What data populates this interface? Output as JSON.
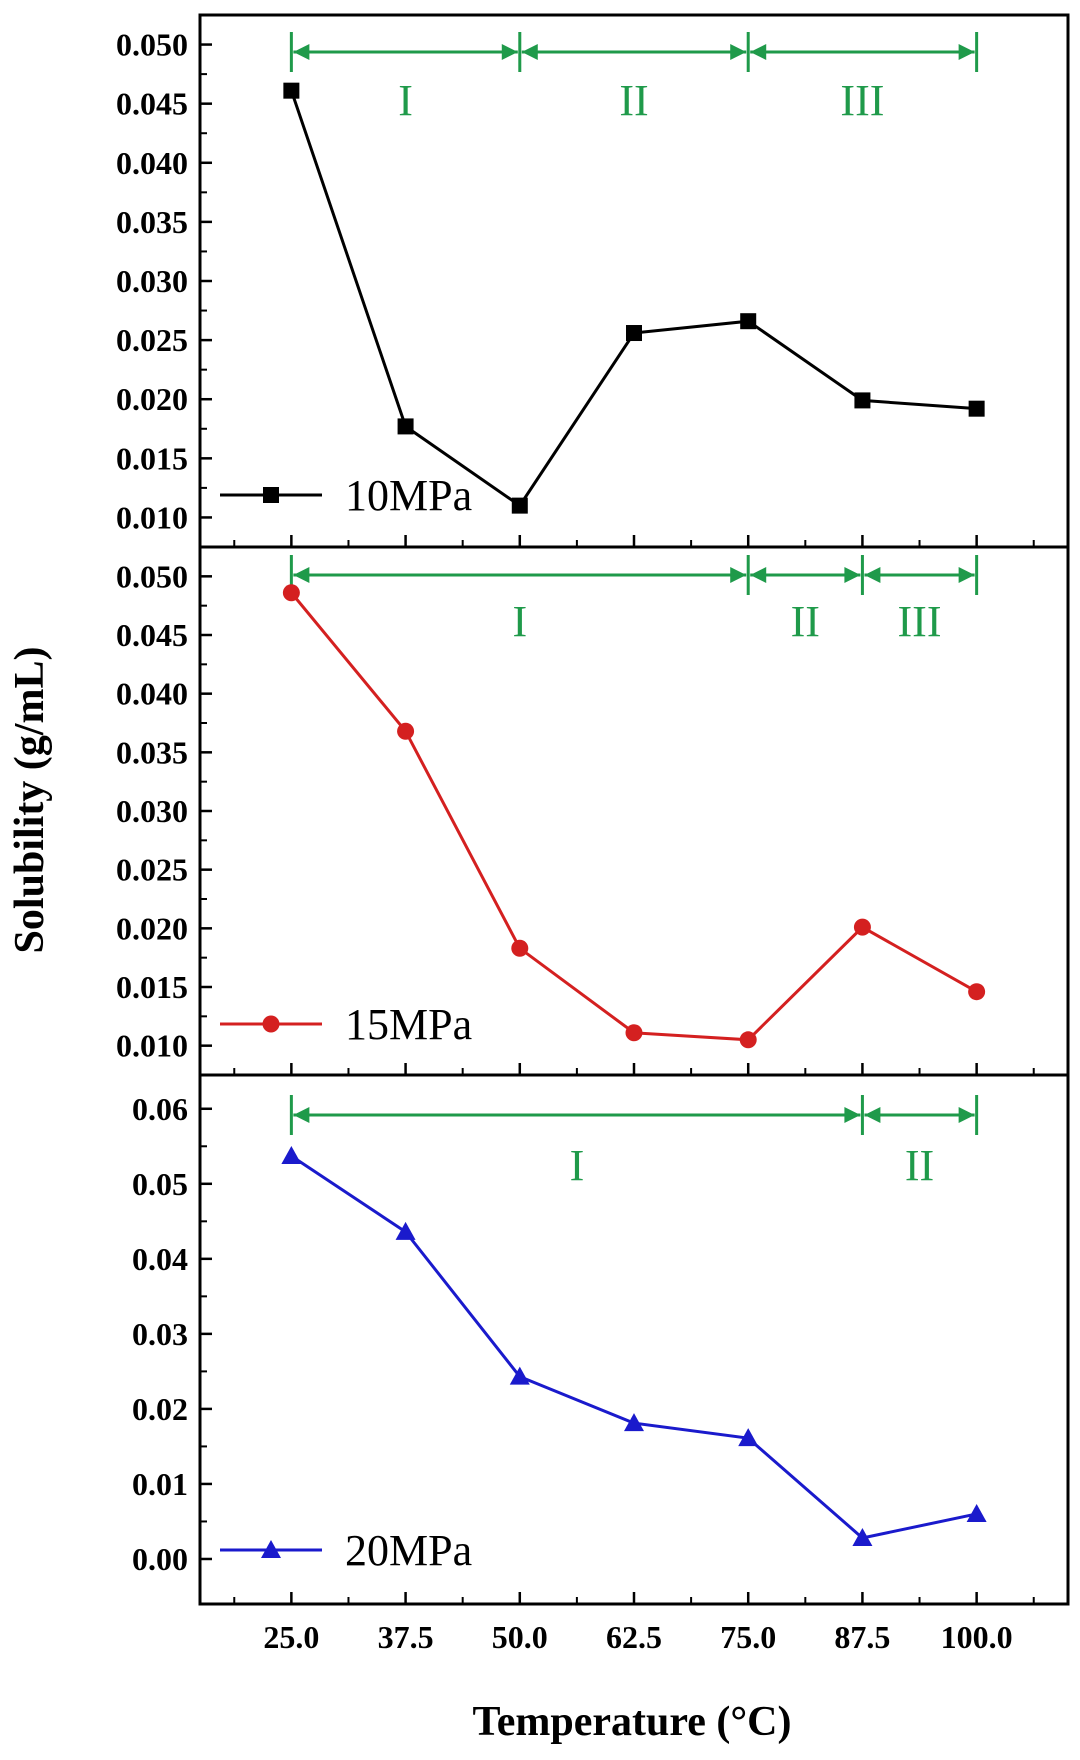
{
  "colors": {
    "region": "#1f9a4a",
    "axis": "#000000"
  },
  "chart_data": {
    "type": "line",
    "xlabel": "Temperature (°C)",
    "ylabel": "Solubility (g/mL)",
    "x_ticks": [
      25.0,
      37.5,
      50.0,
      62.5,
      75.0,
      87.5,
      100.0
    ],
    "x_tick_labels": [
      "25.0",
      "37.5",
      "50.0",
      "62.5",
      "75.0",
      "87.5",
      "100.0"
    ],
    "xlim": [
      15,
      110
    ],
    "panels": [
      {
        "series_name": "10MPa",
        "marker": "square",
        "color": "#000000",
        "x": [
          25.0,
          37.5,
          50.0,
          62.5,
          75.0,
          87.5,
          100.0
        ],
        "y": [
          0.0461,
          0.0177,
          0.011,
          0.0256,
          0.0266,
          0.0199,
          0.0192
        ],
        "ylim": [
          0.0075,
          0.0525
        ],
        "y_ticks": [
          0.01,
          0.015,
          0.02,
          0.025,
          0.03,
          0.035,
          0.04,
          0.045,
          0.05
        ],
        "y_tick_labels": [
          "0.010",
          "0.015",
          "0.020",
          "0.025",
          "0.030",
          "0.035",
          "0.040",
          "0.045",
          "0.050"
        ],
        "region_boundaries": [
          25.0,
          50.0,
          75.0,
          100.0
        ],
        "region_labels": [
          "I",
          "II",
          "III"
        ]
      },
      {
        "series_name": "15MPa",
        "marker": "circle",
        "color": "#d42020",
        "x": [
          25.0,
          37.5,
          50.0,
          62.5,
          75.0,
          87.5,
          100.0
        ],
        "y": [
          0.0486,
          0.0368,
          0.0183,
          0.0111,
          0.0105,
          0.0201,
          0.0146
        ],
        "ylim": [
          0.0075,
          0.0525
        ],
        "y_ticks": [
          0.01,
          0.015,
          0.02,
          0.025,
          0.03,
          0.035,
          0.04,
          0.045,
          0.05
        ],
        "y_tick_labels": [
          "0.010",
          "0.015",
          "0.020",
          "0.025",
          "0.030",
          "0.035",
          "0.040",
          "0.045",
          "0.050"
        ],
        "region_boundaries": [
          25.0,
          75.0,
          87.5,
          100.0
        ],
        "region_labels": [
          "I",
          "II",
          "III"
        ]
      },
      {
        "series_name": "20MPa",
        "marker": "triangle",
        "color": "#1a1acc",
        "x": [
          25.0,
          37.5,
          50.0,
          62.5,
          75.0,
          87.5,
          100.0
        ],
        "y": [
          0.0537,
          0.0436,
          0.0243,
          0.0181,
          0.0161,
          0.0028,
          0.006
        ],
        "ylim": [
          -0.006,
          0.0645
        ],
        "y_ticks": [
          0.0,
          0.01,
          0.02,
          0.03,
          0.04,
          0.05,
          0.06
        ],
        "y_tick_labels": [
          "0.00",
          "0.01",
          "0.02",
          "0.03",
          "0.04",
          "0.05",
          "0.06"
        ],
        "region_boundaries": [
          25.0,
          87.5,
          100.0
        ],
        "region_labels": [
          "I",
          "II"
        ]
      }
    ]
  }
}
